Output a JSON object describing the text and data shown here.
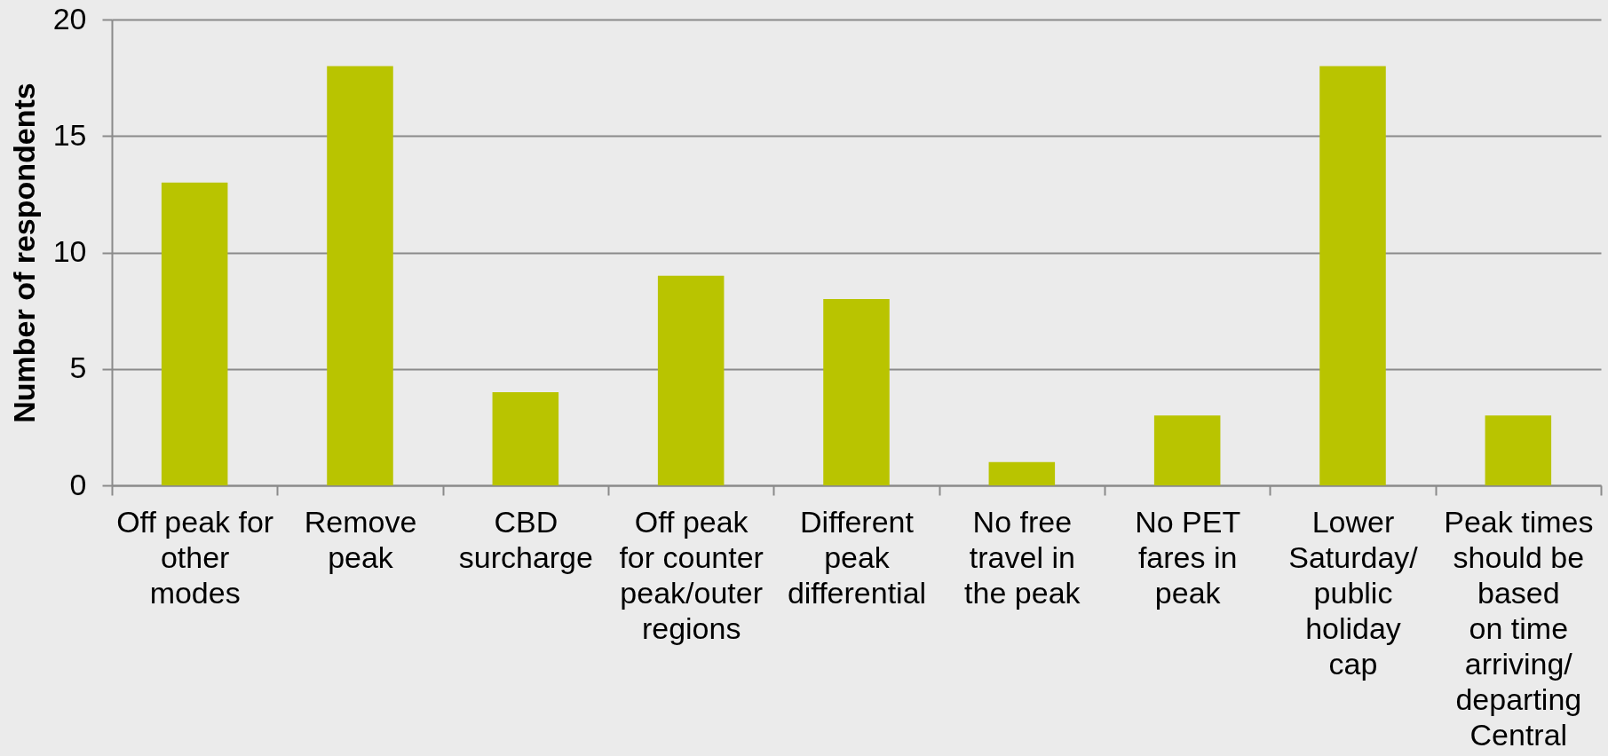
{
  "chart_data": {
    "type": "bar",
    "ylabel": "Number of respondents",
    "categories": [
      "Off peak for\nother\nmodes",
      "Remove\npeak",
      "CBD\nsurcharge",
      "Off peak\nfor counter\npeak/outer\nregions",
      "Different\npeak\ndifferential",
      "No free\ntravel in\nthe peak",
      "No PET\nfares in\npeak",
      "Lower\nSaturday/\npublic\nholiday\ncap",
      "Peak times\nshould be\nbased\non time\narriving/\ndeparting\nCentral"
    ],
    "values": [
      13,
      18,
      4,
      9,
      8,
      1,
      3,
      18,
      3
    ],
    "color": "#b9c400",
    "ylim": [
      0,
      20
    ],
    "yticks": [
      0,
      5,
      10,
      15,
      20
    ],
    "grid": "y"
  }
}
